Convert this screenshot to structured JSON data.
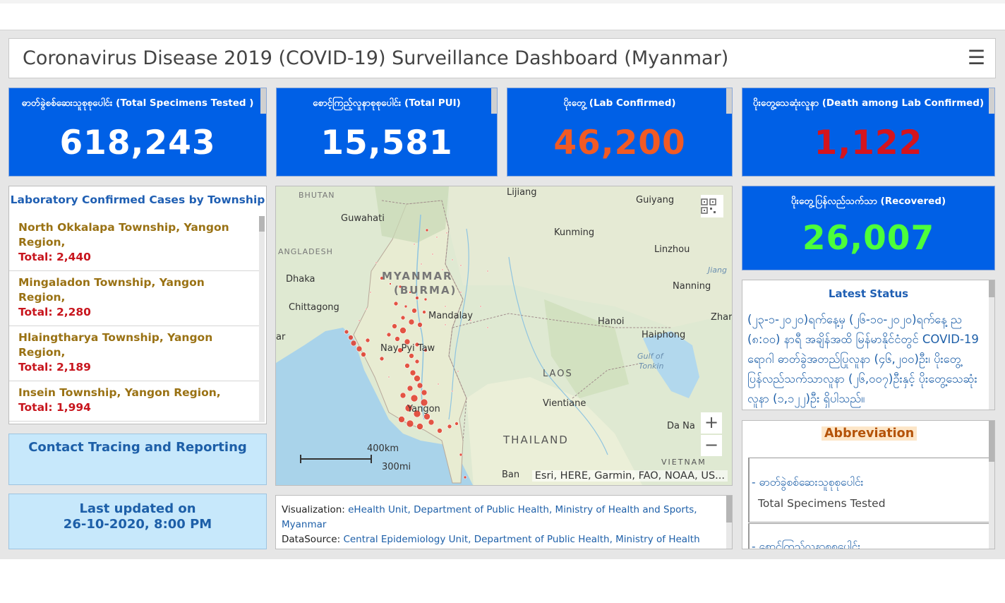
{
  "header": {
    "title": "Coronavirus Disease 2019 (COVID-19) Surveillance Dashboard (Myanmar)",
    "menu_icon": "hamburger-menu-icon"
  },
  "cards": {
    "specimens": {
      "title": "ဓာတ်ခွဲစစ်ဆေးသူစုစုပေါင်း (Total Specimens Tested )",
      "value": "618,243",
      "color": "#ffffff"
    },
    "pui": {
      "title": "စောင့်ကြည့်လူနာစုစုပေါင်း (Total PUI)",
      "value": "15,581",
      "color": "#ffffff"
    },
    "confirmed": {
      "title": "ပိုးတွေ့ (Lab Confirmed)",
      "value": "46,200",
      "color": "#f15a24"
    },
    "deaths": {
      "title": "ပိုးတွေ့သေဆုံးလူနာ (Death among Lab Confirmed)",
      "value": "1,122",
      "color": "#d4141e"
    },
    "recovered": {
      "title": "ပိုးတွေ့ပြန်လည်သက်သာ (Recovered)",
      "value": "26,007",
      "color": "#4cff3a"
    }
  },
  "township": {
    "title": "Laboratory Confirmed Cases by Township",
    "items": [
      {
        "name": "North Okkalapa Township, Yangon Region,",
        "total": "Total: 2,440"
      },
      {
        "name": "Mingaladon Township, Yangon Region,",
        "total": "Total: 2,280"
      },
      {
        "name": "Hlaingtharya Township, Yangon Region,",
        "total": "Total: 2,189"
      },
      {
        "name": "Insein Township, Yangon Region,",
        "total": "Total: 1,994"
      }
    ]
  },
  "contact": {
    "label": "Contact Tracing and Reporting"
  },
  "updated": {
    "line1": "Last updated on",
    "line2": "26-10-2020, 8:00 PM"
  },
  "map": {
    "labels": {
      "bhutan": "BHUTAN",
      "lijiang": "Lijiang",
      "guiyang": "Guiyang",
      "guwahati": "Guwahati",
      "kunming": "Kunming",
      "bangladesh": "ANGLADESH",
      "linzhou": "Linzhou",
      "jiang": "Jiang",
      "dhaka": "Dhaka",
      "myanmar": "MYANMAR",
      "burma": "(BURMA)",
      "nanning": "Nanning",
      "chittagong": "Chittagong",
      "mandalay": "Mandalay",
      "zhar": "Zhar",
      "hanoi": "Hanoi",
      "haiphong": "Haiphong",
      "gulf1": "Gulf of",
      "gulf2": "Tonkin",
      "naypyitaw": "Nay Pyi Taw",
      "laos": "LAOS",
      "vientiane": "Vientiane",
      "yangon": "Yangon",
      "thailand": "THAILAND",
      "danang": "Da Na",
      "vietnam": "VIETNAM",
      "ban": "Ban",
      "ar": "ar",
      "scale_km": "400km",
      "scale_mi": "300mi"
    },
    "attribution": "Esri, HERE, Garmin, FAO, NOAA, US...",
    "zoom_in": "+",
    "zoom_out": "−",
    "qr_icon": "qr-code-icon"
  },
  "viz": {
    "viz_label": "Visualization:",
    "viz_value": "eHealth Unit, Department of Public Health, Ministry of Health and Sports, Myanmar",
    "src_label": "DataSource:",
    "src_value": "Central Epidemiology Unit, Department of Public Health, Ministry of Health"
  },
  "latest": {
    "title": "Latest Status",
    "body": "(၂၃-၁-၂၀၂၀)ရက်နေ့မှ (၂၆-၁၀-၂၀၂၀)ရက်နေ့ ည (၈:၀၀) နာရီ အချိန်အထိ မြန်မာနိုင်ငံတွင် COVID-19 ရောဂါ ဓာတ်ခွဲအတည်ပြုလူနာ (၄၆,၂၀၀)ဦး၊ ပိုးတွေ့ပြန်လည်သက်သာလူနာ (၂၆,၀၀၇)ဦးနှင့် ပိုးတွေ့သေဆုံးလူနာ (၁,၁၂၂)ဦး ရှိပါသည်။"
  },
  "abbr": {
    "title": "Abbreviation",
    "row1_my": "- ဓာတ်ခွဲစစ်ဆေးသူစုစုပေါင်း",
    "row1_en": "Total Specimens Tested",
    "row2_my": "- စောင့်ကြည့်လူနာစုစုပေါင်း"
  }
}
